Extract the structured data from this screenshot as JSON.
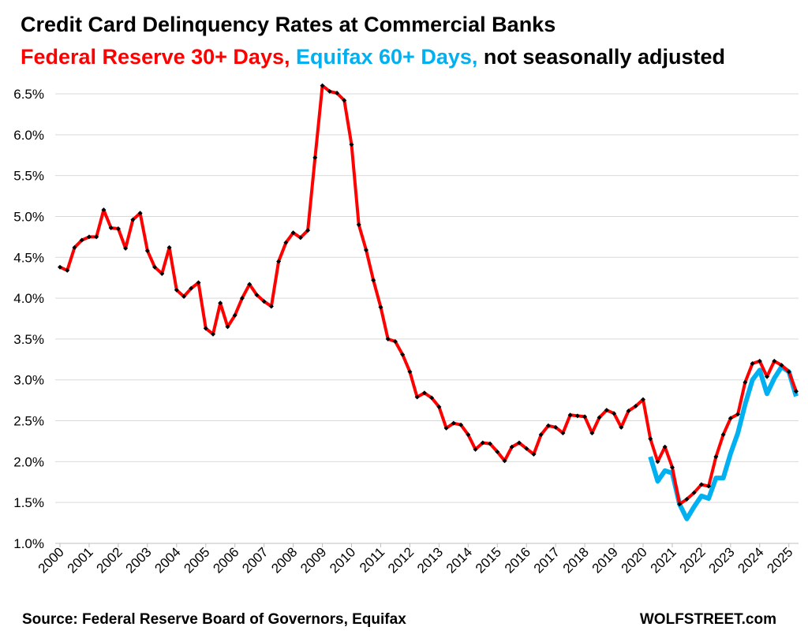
{
  "chart_data": {
    "type": "line",
    "title": "Credit Card Delinquency Rates at Commercial Banks",
    "subtitle": "not seasonally adjusted",
    "source": "Source: Federal Reserve Board of Governors, Equifax",
    "credit": "WOLFSTREET.com",
    "xlim": [
      2000,
      2025.25
    ],
    "ylim": [
      1,
      6.5
    ],
    "xticks": [
      2000,
      2001,
      2002,
      2003,
      2004,
      2005,
      2006,
      2007,
      2008,
      2009,
      2010,
      2011,
      2012,
      2013,
      2014,
      2015,
      2016,
      2017,
      2018,
      2019,
      2020,
      2021,
      2022,
      2023,
      2024,
      2025
    ],
    "yticks": [
      {
        "value": 1,
        "label": "1.0%"
      },
      {
        "value": 1.5,
        "label": "1.5%"
      },
      {
        "value": 2,
        "label": "2.0%"
      },
      {
        "value": 2.5,
        "label": "2.5%"
      },
      {
        "value": 3,
        "label": "3.0%"
      },
      {
        "value": 3.5,
        "label": "3.5%"
      },
      {
        "value": 4,
        "label": "4.0%"
      },
      {
        "value": 4.5,
        "label": "4.5%"
      },
      {
        "value": 5,
        "label": "5.0%"
      },
      {
        "value": 5.5,
        "label": "5.5%"
      },
      {
        "value": 6,
        "label": "6.0%"
      },
      {
        "value": 6.5,
        "label": "6.5%"
      }
    ],
    "grid": true,
    "series": [
      {
        "name": "Federal Reserve 30+ Days,",
        "color": "#ff0000",
        "marker_color": "#000000",
        "x": [
          2000,
          2000.25,
          2000.5,
          2000.75,
          2001,
          2001.25,
          2001.5,
          2001.75,
          2002,
          2002.25,
          2002.5,
          2002.75,
          2003,
          2003.25,
          2003.5,
          2003.75,
          2004,
          2004.25,
          2004.5,
          2004.75,
          2005,
          2005.25,
          2005.5,
          2005.75,
          2006,
          2006.25,
          2006.5,
          2006.75,
          2007,
          2007.25,
          2007.5,
          2007.75,
          2008,
          2008.25,
          2008.5,
          2008.75,
          2009,
          2009.25,
          2009.5,
          2009.75,
          2010,
          2010.25,
          2010.5,
          2010.75,
          2011,
          2011.25,
          2011.5,
          2011.75,
          2012,
          2012.25,
          2012.5,
          2012.75,
          2013,
          2013.25,
          2013.5,
          2013.75,
          2014,
          2014.25,
          2014.5,
          2014.75,
          2015,
          2015.25,
          2015.5,
          2015.75,
          2016,
          2016.25,
          2016.5,
          2016.75,
          2017,
          2017.25,
          2017.5,
          2017.75,
          2018,
          2018.25,
          2018.5,
          2018.75,
          2019,
          2019.25,
          2019.5,
          2019.75,
          2020,
          2020.25,
          2020.5,
          2020.75,
          2021,
          2021.25,
          2021.5,
          2021.75,
          2022,
          2022.25,
          2022.5,
          2022.75,
          2023,
          2023.25,
          2023.5,
          2023.75,
          2024,
          2024.25,
          2024.5,
          2024.75,
          2025,
          2025.25
        ],
        "values": [
          4.38,
          4.34,
          4.62,
          4.71,
          4.75,
          4.75,
          5.08,
          4.86,
          4.85,
          4.61,
          4.96,
          5.04,
          4.58,
          4.38,
          4.3,
          4.62,
          4.1,
          4.02,
          4.12,
          4.19,
          3.63,
          3.56,
          3.94,
          3.65,
          3.79,
          4.0,
          4.17,
          4.04,
          3.96,
          3.9,
          4.45,
          4.68,
          4.8,
          4.74,
          4.83,
          5.72,
          6.6,
          6.53,
          6.51,
          6.42,
          5.88,
          4.9,
          4.59,
          4.22,
          3.89,
          3.5,
          3.47,
          3.31,
          3.1,
          2.79,
          2.84,
          2.78,
          2.67,
          2.41,
          2.47,
          2.45,
          2.33,
          2.15,
          2.23,
          2.22,
          2.12,
          2.01,
          2.18,
          2.23,
          2.16,
          2.09,
          2.33,
          2.44,
          2.42,
          2.35,
          2.57,
          2.56,
          2.55,
          2.35,
          2.54,
          2.63,
          2.59,
          2.42,
          2.62,
          2.68,
          2.76,
          2.28,
          2.0,
          2.18,
          1.93,
          1.48,
          1.54,
          1.62,
          1.72,
          1.7,
          2.06,
          2.33,
          2.53,
          2.58,
          2.97,
          3.2,
          3.23,
          3.04,
          3.23,
          3.18,
          3.1,
          2.86
        ]
      },
      {
        "name": "Equifax 60+ Days,",
        "color": "#00b0f0",
        "x": [
          2020.25,
          2020.5,
          2020.75,
          2021,
          2021.25,
          2021.5,
          2021.75,
          2022,
          2022.25,
          2022.5,
          2022.75,
          2023,
          2023.25,
          2023.5,
          2023.75,
          2024,
          2024.25,
          2024.5,
          2024.75,
          2025,
          2025.25
        ],
        "values": [
          2.06,
          1.76,
          1.89,
          1.86,
          1.48,
          1.3,
          1.45,
          1.58,
          1.55,
          1.8,
          1.8,
          2.1,
          2.35,
          2.7,
          3.0,
          3.12,
          2.83,
          3.02,
          3.16,
          3.1,
          2.8
        ]
      }
    ]
  }
}
